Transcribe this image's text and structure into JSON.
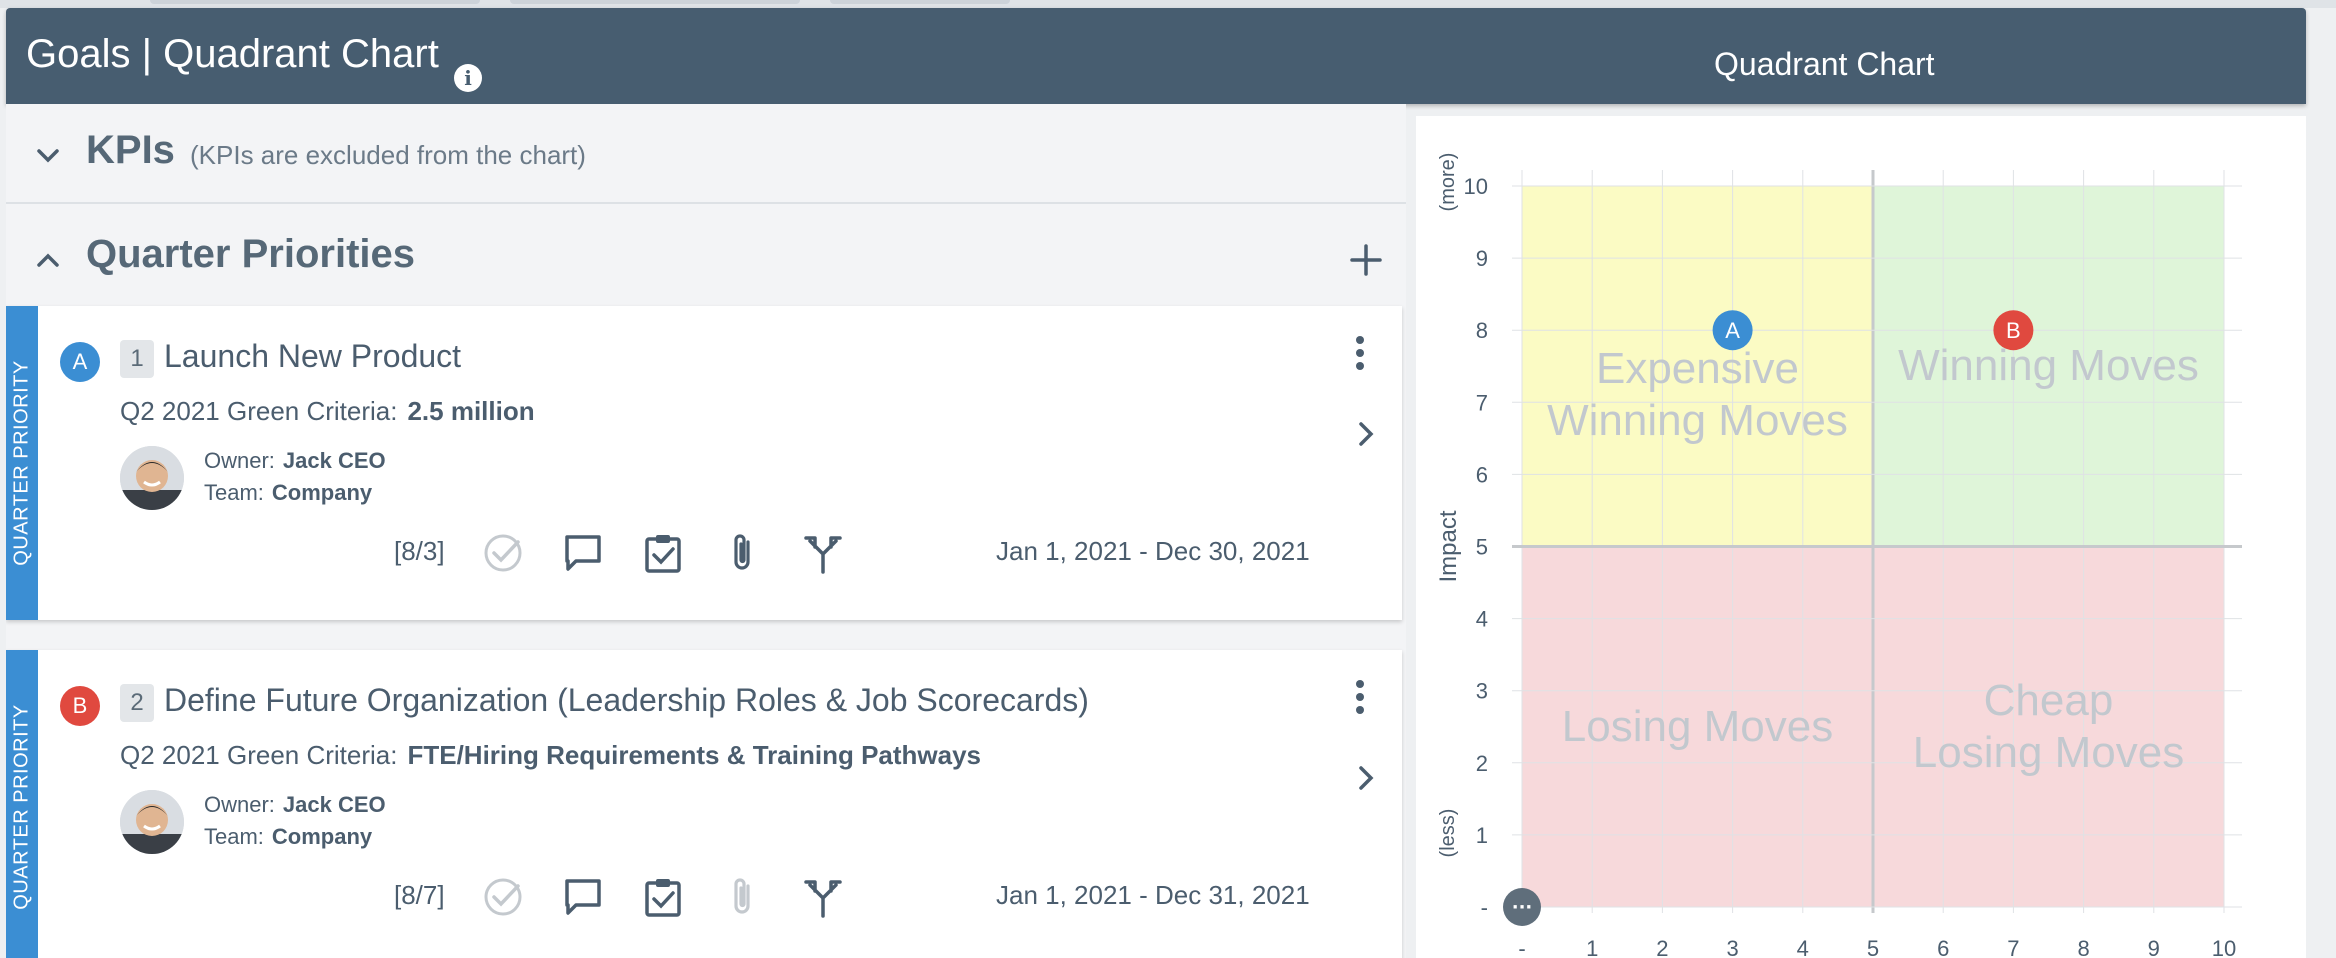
{
  "header": {
    "title": "Goals | Quadrant Chart",
    "right_title": "Quadrant Chart"
  },
  "kpis": {
    "title": "KPIs",
    "note": "(KPIs are excluded from the chart)"
  },
  "quarter_priorities": {
    "title": "Quarter Priorities",
    "cards": [
      {
        "band_label": "QUARTER PRIORITY",
        "marker": "A",
        "marker_color": "#3b8ed3",
        "number": "1",
        "title": "Launch New Product",
        "criteria_label": "Q2 2021 Green Criteria:",
        "criteria_value": "2.5 million",
        "owner_label": "Owner:",
        "owner": "Jack CEO",
        "team_label": "Team:",
        "team": "Company",
        "count": "[8/3]",
        "dates": "Jan 1, 2021 - Dec 30, 2021",
        "attachment_active": true
      },
      {
        "band_label": "QUARTER PRIORITY",
        "marker": "B",
        "marker_color": "#e0493f",
        "number": "2",
        "title": "Define Future Organization (Leadership Roles & Job Scorecards)",
        "criteria_label": "Q2 2021 Green Criteria:",
        "criteria_value": "FTE/Hiring Requirements & Training Pathways",
        "owner_label": "Owner:",
        "owner": "Jack CEO",
        "team_label": "Team:",
        "team": "Company",
        "count": "[8/7]",
        "dates": "Jan 1, 2021 - Dec 31, 2021",
        "attachment_active": false
      }
    ]
  },
  "chart_data": {
    "type": "scatter",
    "ylabel": "Impact",
    "y_top_hint": "(more)",
    "y_bottom_hint": "(less)",
    "x_ticks": [
      "-",
      "1",
      "2",
      "3",
      "4",
      "5",
      "6",
      "7",
      "8",
      "9",
      "10"
    ],
    "y_ticks": [
      "10",
      "9",
      "8",
      "7",
      "6",
      "5",
      "4",
      "3",
      "2",
      "1",
      "-"
    ],
    "xlim": [
      0,
      10
    ],
    "ylim": [
      0,
      10
    ],
    "grid": true,
    "quadrants": [
      {
        "name": "Expensive Winning Moves",
        "line1": "Expensive",
        "line2": "Winning Moves",
        "color": "#fbfbc4"
      },
      {
        "name": "Winning Moves",
        "line1": "Winning Moves",
        "line2": "",
        "color": "#dff5d9"
      },
      {
        "name": "Losing Moves",
        "line1": "Losing Moves",
        "line2": "",
        "color": "#f7d9db"
      },
      {
        "name": "Cheap Losing Moves",
        "line1": "Cheap",
        "line2": "Losing Moves",
        "color": "#f7d9db"
      }
    ],
    "points": [
      {
        "label": "A",
        "x": 3,
        "y": 8,
        "color": "#3b8ed3"
      },
      {
        "label": "B",
        "x": 7,
        "y": 8,
        "color": "#e0493f"
      }
    ],
    "origin_marker": "···"
  }
}
